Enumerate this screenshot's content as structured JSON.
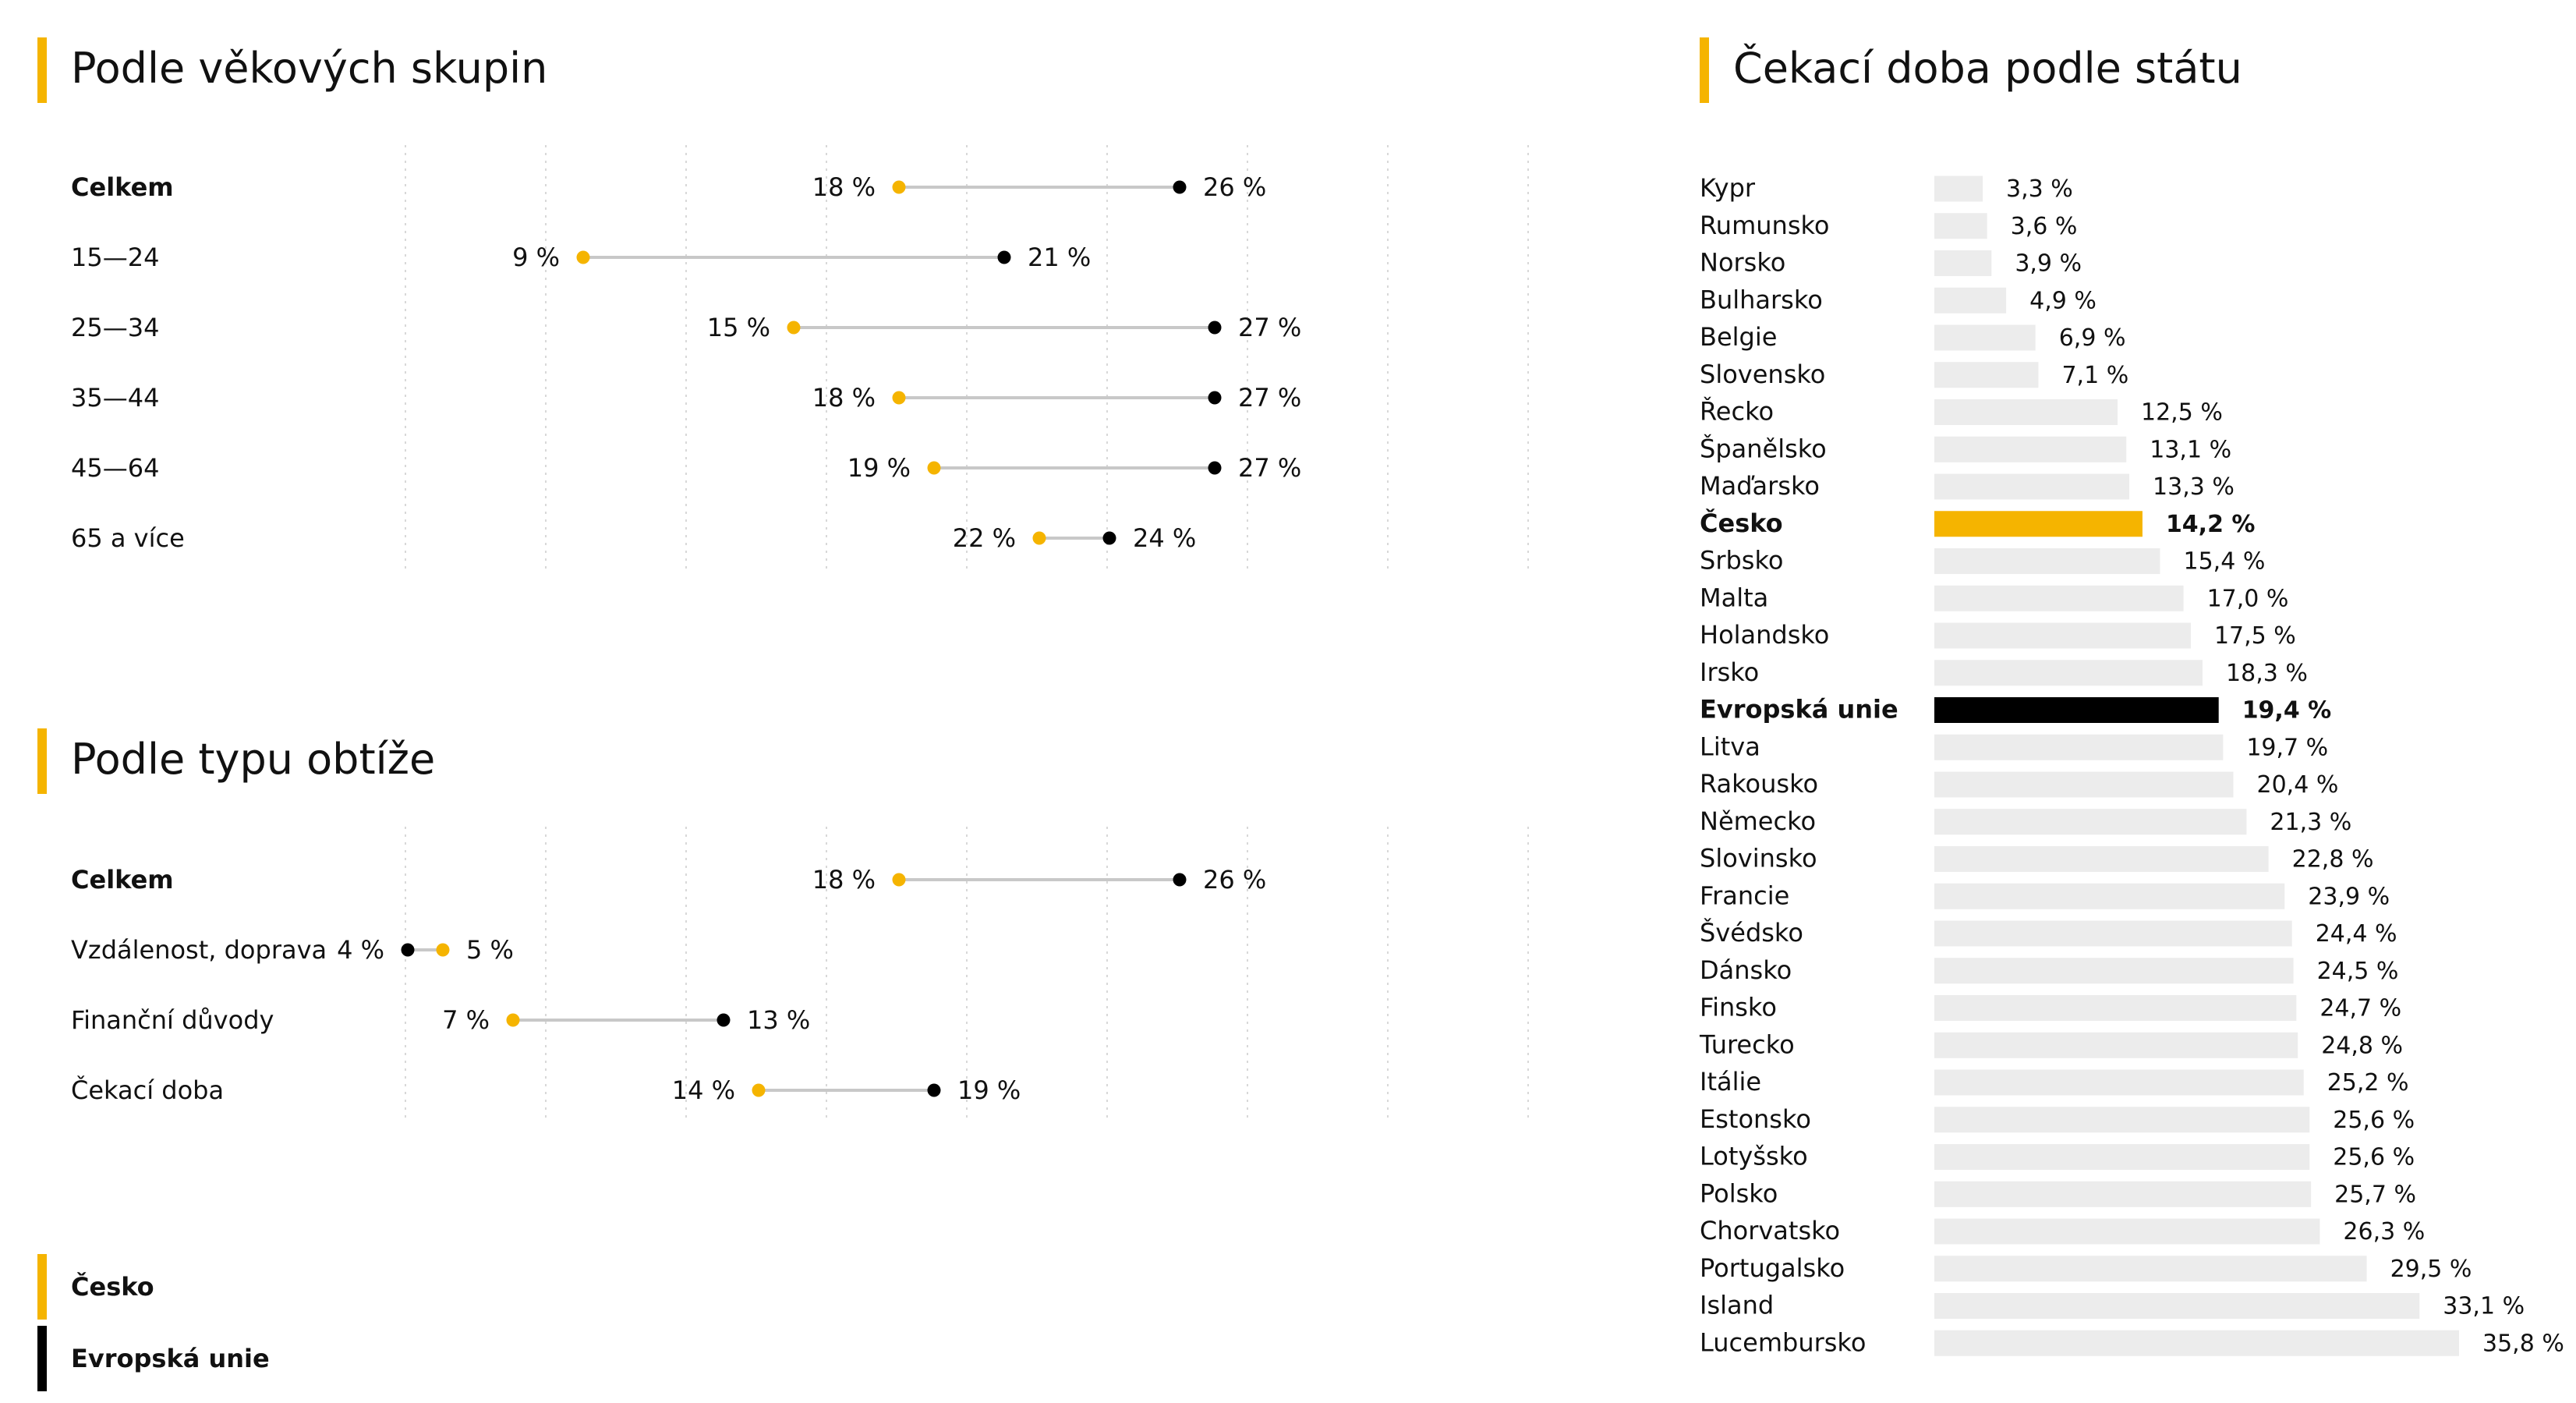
{
  "colors": {
    "cesko": "#f5b400",
    "eu": "#000000",
    "bar": "#ececec",
    "line": "#c8c8c8",
    "grid": "#d8d8d8"
  },
  "chart_data": [
    {
      "type": "dumbbell",
      "title": "Podle věkových skupin",
      "xlim": [
        0,
        40
      ],
      "grid": true,
      "series": [
        {
          "name": "Česko",
          "color": "#f5b400"
        },
        {
          "name": "Evropská unie",
          "color": "#000000"
        }
      ],
      "rows": [
        {
          "label": "Celkem",
          "bold": true,
          "cesko": 18,
          "eu": 26,
          "cesko_label": "18 %",
          "eu_label": "26 %"
        },
        {
          "label": "15—24",
          "bold": false,
          "cesko": 9,
          "eu": 21,
          "cesko_label": "9 %",
          "eu_label": "21 %"
        },
        {
          "label": "25—34",
          "bold": false,
          "cesko": 15,
          "eu": 27,
          "cesko_label": "15 %",
          "eu_label": "27 %"
        },
        {
          "label": "35—44",
          "bold": false,
          "cesko": 18,
          "eu": 27,
          "cesko_label": "18 %",
          "eu_label": "27 %"
        },
        {
          "label": "45—64",
          "bold": false,
          "cesko": 19,
          "eu": 27,
          "cesko_label": "19 %",
          "eu_label": "27 %"
        },
        {
          "label": "65 a více",
          "bold": false,
          "cesko": 22,
          "eu": 24,
          "cesko_label": "22 %",
          "eu_label": "24 %"
        }
      ]
    },
    {
      "type": "dumbbell",
      "title": "Podle typu obtíže",
      "xlim": [
        0,
        40
      ],
      "grid": true,
      "series": [
        {
          "name": "Česko",
          "color": "#f5b400"
        },
        {
          "name": "Evropská unie",
          "color": "#000000"
        }
      ],
      "rows": [
        {
          "label": "Celkem",
          "bold": true,
          "cesko": 18,
          "eu": 26,
          "cesko_label": "18 %",
          "eu_label": "26 %"
        },
        {
          "label": "Vzdálenost, doprava",
          "bold": false,
          "cesko": 5,
          "eu": 4,
          "cesko_label": "5 %",
          "eu_label": "4 %"
        },
        {
          "label": "Finanční důvody",
          "bold": false,
          "cesko": 7,
          "eu": 13,
          "cesko_label": "7 %",
          "eu_label": "13 %"
        },
        {
          "label": "Čekací doba",
          "bold": false,
          "cesko": 14,
          "eu": 19,
          "cesko_label": "14 %",
          "eu_label": "19 %"
        }
      ]
    },
    {
      "type": "bar",
      "orientation": "horizontal",
      "title": "Čekací doba podle státu",
      "xlim": [
        0,
        35.8
      ],
      "categories": [
        "Kypr",
        "Rumunsko",
        "Norsko",
        "Bulharsko",
        "Belgie",
        "Slovensko",
        "Řecko",
        "Španělsko",
        "Maďarsko",
        "Česko",
        "Srbsko",
        "Malta",
        "Holandsko",
        "Irsko",
        "Evropská unie",
        "Litva",
        "Rakousko",
        "Německo",
        "Slovinsko",
        "Francie",
        "Švédsko",
        "Dánsko",
        "Finsko",
        "Turecko",
        "Itálie",
        "Estonsko",
        "Lotyšsko",
        "Polsko",
        "Chorvatsko",
        "Portugalsko",
        "Island",
        "Lucembursko"
      ],
      "values": [
        3.3,
        3.6,
        3.9,
        4.9,
        6.9,
        7.1,
        12.5,
        13.1,
        13.3,
        14.2,
        15.4,
        17.0,
        17.5,
        18.3,
        19.4,
        19.7,
        20.4,
        21.3,
        22.8,
        23.9,
        24.4,
        24.5,
        24.7,
        24.8,
        25.2,
        25.6,
        25.6,
        25.7,
        26.3,
        29.5,
        33.1,
        35.8
      ],
      "value_labels": [
        "3,3 %",
        "3,6 %",
        "3,9 %",
        "4,9 %",
        "6,9 %",
        "7,1 %",
        "12,5 %",
        "13,1 %",
        "13,3 %",
        "14,2 %",
        "15,4 %",
        "17,0 %",
        "17,5 %",
        "18,3 %",
        "19,4 %",
        "19,7 %",
        "20,4 %",
        "21,3 %",
        "22,8 %",
        "23,9 %",
        "24,4 %",
        "24,5 %",
        "24,7 %",
        "24,8 %",
        "25,2 %",
        "25,6 %",
        "25,6 %",
        "25,7 %",
        "26,3 %",
        "29,5 %",
        "33,1 %",
        "35,8 %"
      ],
      "highlight": {
        "Česko": "cesko",
        "Evropská unie": "eu"
      }
    }
  ],
  "legend": {
    "placement": "bottom-left",
    "items": [
      {
        "label": "Česko",
        "color": "#f5b400"
      },
      {
        "label": "Evropská unie",
        "color": "#000000"
      }
    ]
  }
}
